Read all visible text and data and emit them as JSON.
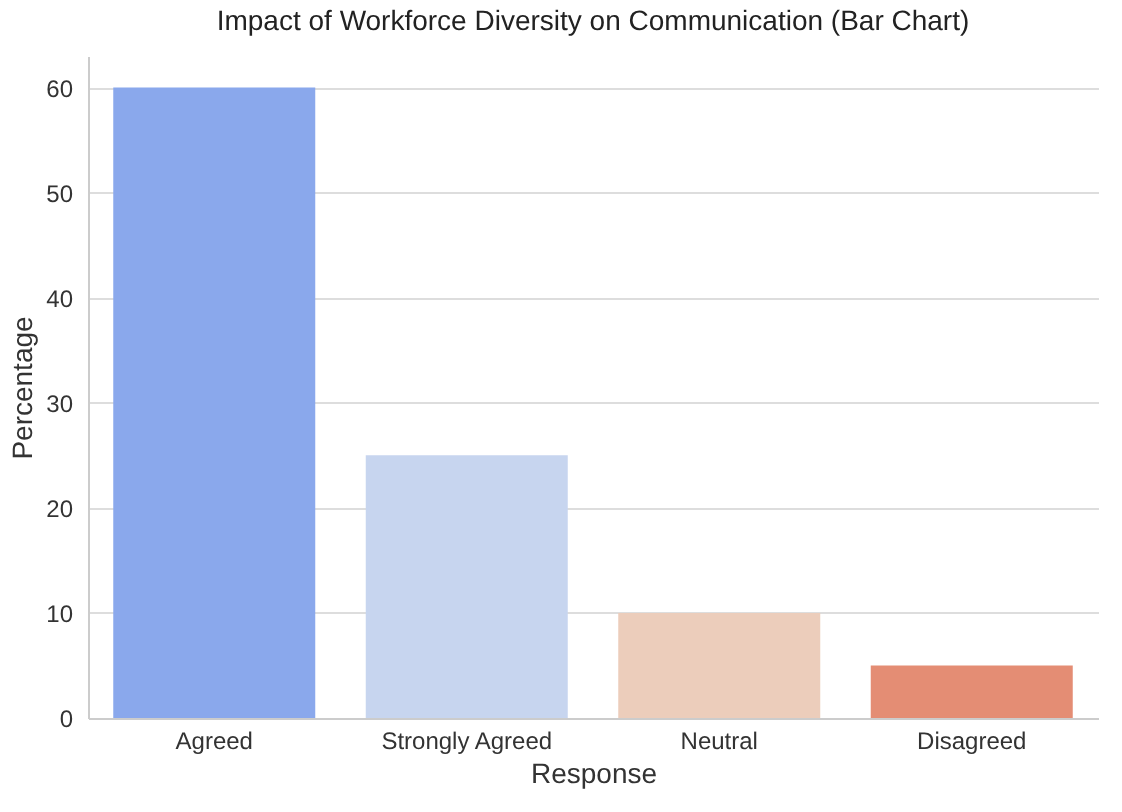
{
  "chart_data": {
    "type": "bar",
    "title": "Impact of Workforce Diversity on Communication (Bar Chart)",
    "xlabel": "Response",
    "ylabel": "Percentage",
    "categories": [
      "Agreed",
      "Strongly Agreed",
      "Neutral",
      "Disagreed"
    ],
    "values": [
      60,
      25,
      10,
      5
    ],
    "colors": [
      "#8aa8ec",
      "#c7d5ef",
      "#eccdbb",
      "#e48d74"
    ],
    "ylim": [
      0,
      63
    ],
    "yticks": [
      0,
      10,
      20,
      30,
      40,
      50,
      60
    ],
    "grid": "y"
  }
}
